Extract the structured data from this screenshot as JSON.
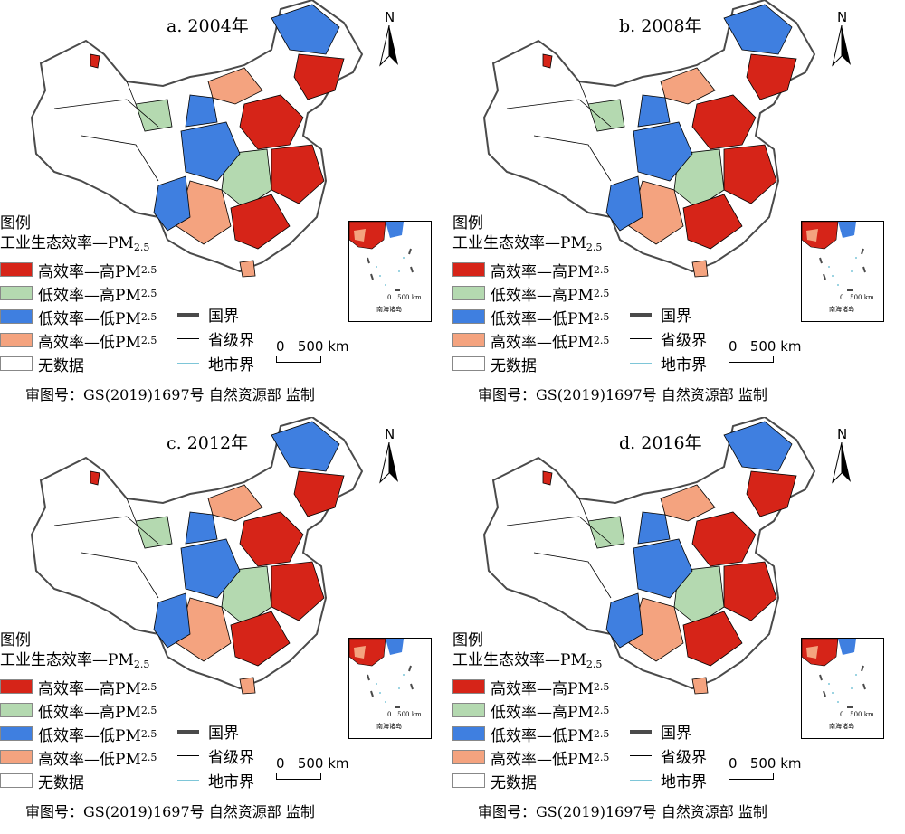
{
  "colors": {
    "high_eff_high_pm": "#d62418",
    "low_eff_high_pm": "#b4d9b0",
    "low_eff_low_pm": "#3f7fe0",
    "high_eff_low_pm": "#f4a37f",
    "no_data": "#ffffff",
    "national_border": "#4a4a4a",
    "provincial_border": "#000000",
    "city_border": "#7ec6d8"
  },
  "panels": [
    {
      "title": "a. 2004年"
    },
    {
      "title": "b. 2008年"
    },
    {
      "title": "c. 2012年"
    },
    {
      "title": "d. 2016年"
    }
  ],
  "north_label": "N",
  "legend": {
    "title": "图例",
    "subtitle_main": "工业生态效率—PM",
    "subtitle_sub": "2.5",
    "items": [
      {
        "label": "高效率—高PM",
        "sub": "2.5",
        "color_key": "high_eff_high_pm"
      },
      {
        "label": "低效率—高PM",
        "sub": "2.5",
        "color_key": "low_eff_high_pm"
      },
      {
        "label": "低效率—低PM",
        "sub": "2.5",
        "color_key": "low_eff_low_pm"
      },
      {
        "label": "高效率—低PM",
        "sub": "2.5",
        "color_key": "high_eff_low_pm"
      },
      {
        "label": "无数据",
        "sub": "",
        "color_key": "no_data"
      }
    ]
  },
  "boundary_legend": [
    {
      "label": "国界"
    },
    {
      "label": "省级界"
    },
    {
      "label": "地市界"
    }
  ],
  "scale": {
    "label": "0   500 km"
  },
  "inset": {
    "label": "南海诸岛",
    "scale": "0   500 km"
  },
  "approval": "审图号：GS(2019)1697号 自然资源部 监制"
}
